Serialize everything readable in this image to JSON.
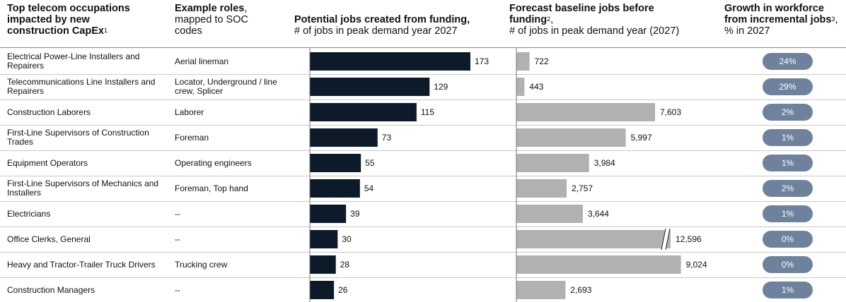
{
  "headers": {
    "occupations": {
      "line1": "Top telecom occupations",
      "line2": "impacted by new",
      "line3": "construction CapEx",
      "sup": "1"
    },
    "roles": {
      "bold": "Example roles",
      "rest1": ",",
      "line2": "mapped to SOC",
      "line3": "codes"
    },
    "funding": {
      "bold": "Potential jobs created from funding,",
      "line2": "# of jobs in peak demand year 2027"
    },
    "baseline": {
      "bold1": "Forecast baseline jobs before",
      "bold2": "funding",
      "sup": "2",
      "rest": ",",
      "line3": "# of jobs in peak demand year (2027)"
    },
    "growth": {
      "line1": "Growth in workforce",
      "line2": "from incremental jobs",
      "sup": "3",
      "rest": ",",
      "line3": "% in 2027"
    }
  },
  "colors": {
    "funding_bar": "#0c1a2a",
    "baseline_bar": "#b1b1b1",
    "pill": "#6f829d"
  },
  "chart_data": {
    "type": "bar",
    "categories": [
      "Electrical Power-Line Installers and Repairers",
      "Telecommunications Line Installers and Repairers",
      "Construction Laborers",
      "First-Line Supervisors of Construction Trades",
      "Equipment Operators",
      "First-Line Supervisors of Mechanics and Installers",
      "Electricians",
      "Office Clerks, General",
      "Heavy and Tractor-Trailer Truck Drivers",
      "Construction Managers"
    ],
    "roles": [
      "Aerial lineman",
      "Locator, Underground / line crew, Splicer",
      "Laborer",
      "Foreman",
      "Operating engineers",
      "Foreman, Top hand",
      "--",
      "--",
      "Trucking crew",
      "--"
    ],
    "series": [
      {
        "name": "Potential jobs created from funding",
        "values": [
          173,
          129,
          115,
          73,
          55,
          54,
          39,
          30,
          28,
          26
        ],
        "labels": [
          "173",
          "129",
          "115",
          "73",
          "55",
          "54",
          "39",
          "30",
          "28",
          "26"
        ]
      },
      {
        "name": "Forecast baseline jobs before funding",
        "values": [
          722,
          443,
          7603,
          5997,
          3984,
          2757,
          3644,
          12596,
          9024,
          2693
        ],
        "labels": [
          "722",
          "443",
          "7,603",
          "5,997",
          "3,984",
          "2,757",
          "3,644",
          "12,596",
          "9,024",
          "2,693"
        ],
        "break_on": [
          7
        ]
      },
      {
        "name": "Growth in workforce from incremental jobs",
        "values": [
          24,
          29,
          2,
          1,
          1,
          2,
          1,
          0,
          0,
          1
        ],
        "labels": [
          "24%",
          "29%",
          "2%",
          "1%",
          "1%",
          "2%",
          "1%",
          "0%",
          "0%",
          "1%"
        ]
      }
    ]
  }
}
